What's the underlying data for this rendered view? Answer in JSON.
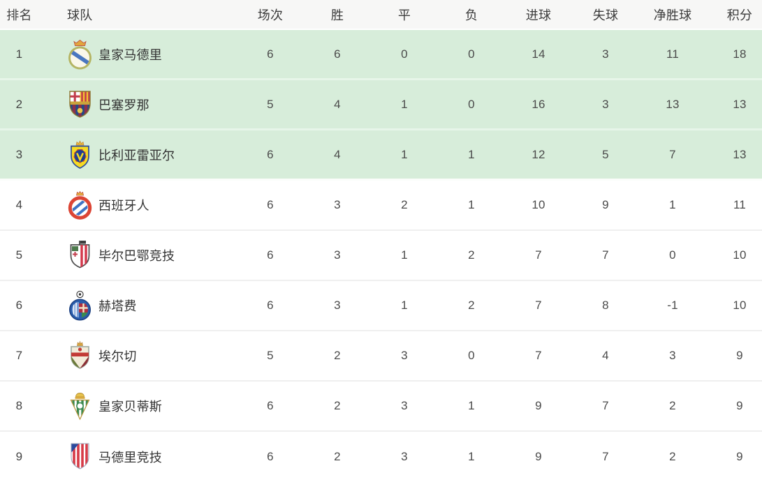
{
  "table": {
    "headers": [
      "排名",
      "球队",
      "场次",
      "胜",
      "平",
      "负",
      "进球",
      "失球",
      "净胜球",
      "积分"
    ],
    "rows": [
      {
        "rank": "1",
        "team": "皇家马德里",
        "logo": "real-madrid",
        "matches": "6",
        "wins": "6",
        "draws": "0",
        "losses": "0",
        "goals_for": "14",
        "goals_against": "3",
        "goal_diff": "11",
        "points": "18",
        "highlight": true
      },
      {
        "rank": "2",
        "team": "巴塞罗那",
        "logo": "barcelona",
        "matches": "5",
        "wins": "4",
        "draws": "1",
        "losses": "0",
        "goals_for": "16",
        "goals_against": "3",
        "goal_diff": "13",
        "points": "13",
        "highlight": true
      },
      {
        "rank": "3",
        "team": "比利亚雷亚尔",
        "logo": "villarreal",
        "matches": "6",
        "wins": "4",
        "draws": "1",
        "losses": "1",
        "goals_for": "12",
        "goals_against": "5",
        "goal_diff": "7",
        "points": "13",
        "highlight": true
      },
      {
        "rank": "4",
        "team": "西班牙人",
        "logo": "espanyol",
        "matches": "6",
        "wins": "3",
        "draws": "2",
        "losses": "1",
        "goals_for": "10",
        "goals_against": "9",
        "goal_diff": "1",
        "points": "11",
        "highlight": false
      },
      {
        "rank": "5",
        "team": "毕尔巴鄂竞技",
        "logo": "athletic-bilbao",
        "matches": "6",
        "wins": "3",
        "draws": "1",
        "losses": "2",
        "goals_for": "7",
        "goals_against": "7",
        "goal_diff": "0",
        "points": "10",
        "highlight": false
      },
      {
        "rank": "6",
        "team": "赫塔费",
        "logo": "getafe",
        "matches": "6",
        "wins": "3",
        "draws": "1",
        "losses": "2",
        "goals_for": "7",
        "goals_against": "8",
        "goal_diff": "-1",
        "points": "10",
        "highlight": false
      },
      {
        "rank": "7",
        "team": "埃尔切",
        "logo": "elche",
        "matches": "5",
        "wins": "2",
        "draws": "3",
        "losses": "0",
        "goals_for": "7",
        "goals_against": "4",
        "goal_diff": "3",
        "points": "9",
        "highlight": false
      },
      {
        "rank": "8",
        "team": "皇家贝蒂斯",
        "logo": "real-betis",
        "matches": "6",
        "wins": "2",
        "draws": "3",
        "losses": "1",
        "goals_for": "9",
        "goals_against": "7",
        "goal_diff": "2",
        "points": "9",
        "highlight": false
      },
      {
        "rank": "9",
        "team": "马德里竞技",
        "logo": "atletico-madrid",
        "matches": "6",
        "wins": "2",
        "draws": "3",
        "losses": "1",
        "goals_for": "9",
        "goals_against": "7",
        "goal_diff": "2",
        "points": "9",
        "highlight": false
      }
    ]
  },
  "colors": {
    "highlight_row_bg": "#d7edda",
    "highlight_divider": "#e7f5e9",
    "header_bg": "#f7f7f6",
    "row_bg": "#ffffff",
    "row_divider": "#efefef",
    "header_text": "#3b3b3b",
    "cell_text": "#4b4b4b",
    "team_text": "#333333"
  }
}
